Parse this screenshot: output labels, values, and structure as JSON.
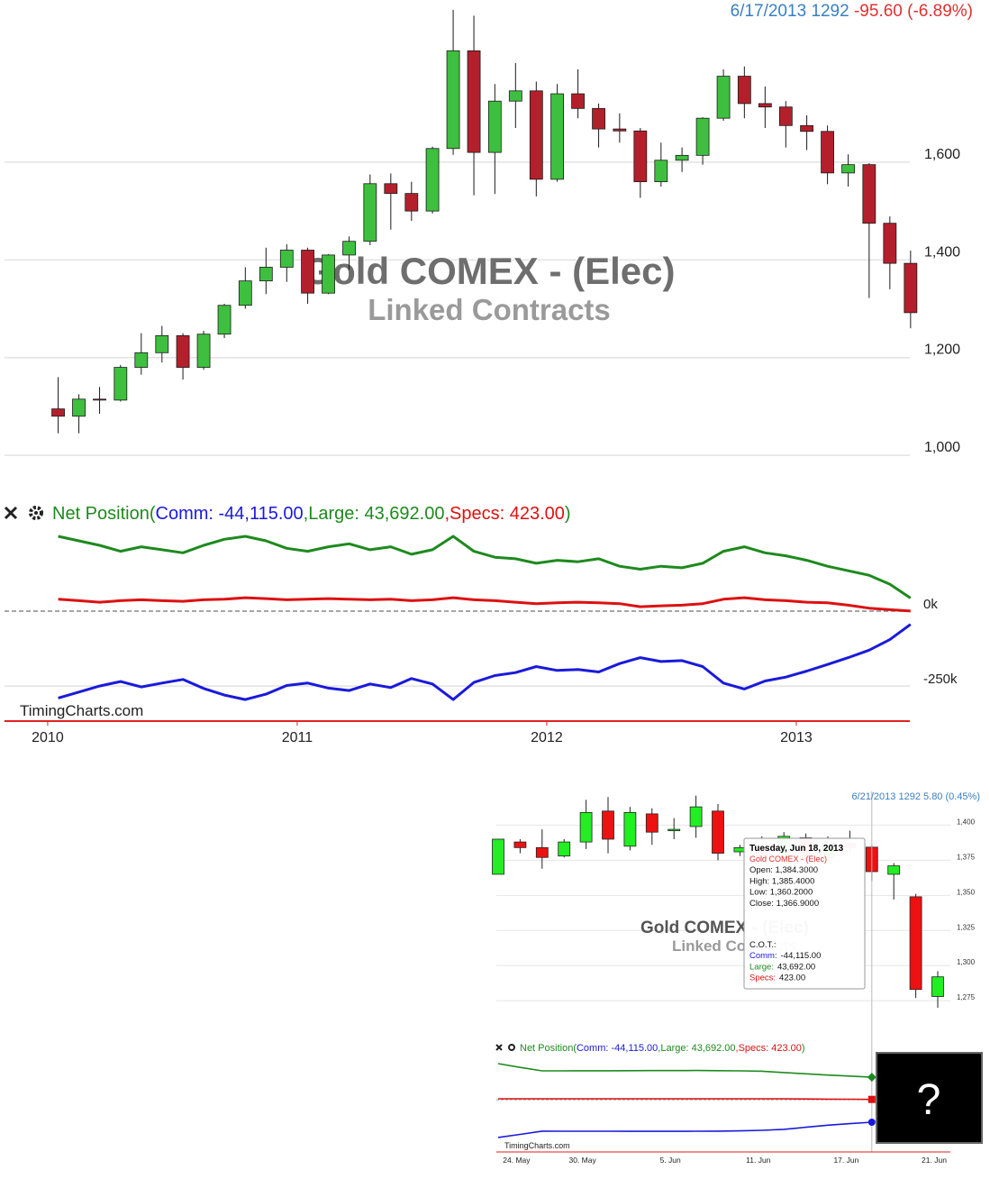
{
  "chart_data": [
    {
      "type": "candlestick",
      "last_date": "6/17/2013",
      "change_label": "-95.60 (-6.89%)",
      "watermark": "Gold COMEX - (Elec)",
      "subtitle": "Linked Contracts",
      "credit": "TimingCharts.com",
      "up_color": "#3fbf3f",
      "down_color": "#b3202c",
      "x": [
        2010.042,
        2010.125,
        2010.208,
        2010.292,
        2010.375,
        2010.458,
        2010.542,
        2010.625,
        2010.708,
        2010.792,
        2010.875,
        2010.958,
        2011.042,
        2011.125,
        2011.208,
        2011.292,
        2011.375,
        2011.458,
        2011.542,
        2011.625,
        2011.708,
        2011.792,
        2011.875,
        2011.958,
        2012.042,
        2012.125,
        2012.208,
        2012.292,
        2012.375,
        2012.458,
        2012.542,
        2012.625,
        2012.708,
        2012.792,
        2012.875,
        2012.958,
        2013.042,
        2013.125,
        2013.208,
        2013.292,
        2013.375,
        2013.458
      ],
      "xlim": [
        2009.827,
        2013.455
      ],
      "xticks": [
        2010,
        2011,
        2012,
        2013
      ],
      "open": [
        1095,
        1080,
        1115,
        1113,
        1180,
        1210,
        1245,
        1180,
        1248,
        1307,
        1357,
        1385,
        1420,
        1332,
        1410,
        1438,
        1556,
        1536,
        1500,
        1628,
        1828,
        1620,
        1725,
        1746,
        1565,
        1740,
        1710,
        1668,
        1664,
        1560,
        1604,
        1614,
        1690,
        1776,
        1720,
        1713,
        1675,
        1663,
        1578,
        1595,
        1475,
        1393
      ],
      "high": [
        1160,
        1125,
        1140,
        1185,
        1250,
        1265,
        1250,
        1255,
        1310,
        1385,
        1425,
        1432,
        1425,
        1412,
        1448,
        1575,
        1577,
        1560,
        1632,
        1912,
        1900,
        1760,
        1803,
        1765,
        1760,
        1790,
        1720,
        1700,
        1670,
        1640,
        1630,
        1692,
        1790,
        1796,
        1755,
        1725,
        1696,
        1675,
        1616,
        1598,
        1489,
        1419
      ],
      "low": [
        1045,
        1045,
        1085,
        1110,
        1165,
        1190,
        1155,
        1175,
        1240,
        1300,
        1330,
        1355,
        1310,
        1330,
        1380,
        1430,
        1462,
        1480,
        1495,
        1615,
        1532,
        1535,
        1670,
        1530,
        1560,
        1690,
        1630,
        1640,
        1527,
        1550,
        1580,
        1595,
        1685,
        1690,
        1670,
        1630,
        1625,
        1555,
        1550,
        1322,
        1340,
        1260
      ],
      "close": [
        1080,
        1115,
        1113,
        1180,
        1210,
        1245,
        1180,
        1248,
        1307,
        1357,
        1385,
        1420,
        1332,
        1410,
        1438,
        1556,
        1536,
        1500,
        1628,
        1828,
        1620,
        1725,
        1746,
        1565,
        1740,
        1710,
        1668,
        1664,
        1560,
        1604,
        1614,
        1690,
        1776,
        1720,
        1713,
        1675,
        1663,
        1578,
        1595,
        1475,
        1393,
        1292
      ],
      "ylim": [
        991,
        1932
      ],
      "yticks": [
        {
          "value": 1000,
          "label": "1,000"
        },
        {
          "value": 1200,
          "label": "1,200"
        },
        {
          "value": 1400,
          "label": "1,400"
        },
        {
          "value": 1600,
          "label": "1,600"
        }
      ],
      "indicator": {
        "title_prefix": "Net Position(",
        "title_suffix": ")",
        "ylim": [
          -367000,
          265000
        ],
        "yticks": [
          {
            "value": 0,
            "label": "0k"
          },
          {
            "value": -250000,
            "label": "-250k"
          }
        ],
        "series": [
          {
            "legend": "Comm: -44,115.00",
            "color": "#1a1adb",
            "values": [
              -290000,
              -270000,
              -250000,
              -235000,
              -253000,
              -240000,
              -228000,
              -258000,
              -280000,
              -295000,
              -277000,
              -248000,
              -240000,
              -257000,
              -265000,
              -243000,
              -255000,
              -225000,
              -243000,
              -295000,
              -238000,
              -215000,
              -205000,
              -185000,
              -198000,
              -195000,
              -203000,
              -175000,
              -155000,
              -168000,
              -165000,
              -185000,
              -240000,
              -260000,
              -233000,
              -220000,
              -200000,
              -178000,
              -155000,
              -130000,
              -95000,
              -44115
            ]
          },
          {
            "legend": ",Large: 43,692.00",
            "color": "#1e8a1e",
            "values": [
              250000,
              235000,
              220000,
              200000,
              215000,
              205000,
              195000,
              220000,
              240000,
              250000,
              235000,
              210000,
              200000,
              215000,
              225000,
              205000,
              215000,
              190000,
              205000,
              250000,
              200000,
              180000,
              175000,
              160000,
              170000,
              165000,
              175000,
              150000,
              140000,
              150000,
              145000,
              160000,
              200000,
              215000,
              195000,
              185000,
              170000,
              150000,
              135000,
              120000,
              90000,
              43692
            ]
          },
          {
            "legend": ",Specs: 423.00",
            "color": "#dd1111",
            "values": [
              40000,
              35000,
              30000,
              35000,
              38000,
              35000,
              33000,
              38000,
              40000,
              45000,
              42000,
              38000,
              40000,
              42000,
              40000,
              38000,
              40000,
              35000,
              38000,
              45000,
              38000,
              35000,
              30000,
              25000,
              28000,
              30000,
              28000,
              25000,
              15000,
              18000,
              20000,
              25000,
              40000,
              45000,
              38000,
              35000,
              30000,
              28000,
              20000,
              10000,
              5000,
              423
            ]
          }
        ]
      }
    },
    {
      "type": "candlestick",
      "last_date": "6/21/2013",
      "change_label": "5.80 (0.45%)",
      "watermark": "Gold COMEX - (Elec)",
      "subtitle": "Linked Contracts",
      "credit": "TimingCharts.com",
      "up_color": "#22ee22",
      "down_color": "#ee1111",
      "categories": [
        null,
        "24. May",
        null,
        null,
        "30. May",
        null,
        null,
        null,
        "5. Jun",
        null,
        null,
        null,
        "11. Jun",
        null,
        null,
        null,
        "17. Jun",
        null,
        null,
        null,
        "21. Jun"
      ],
      "open": [
        1365,
        1388,
        1384,
        1378,
        1388,
        1410,
        1385,
        1408,
        1396,
        1399,
        1410,
        1381,
        1385,
        1377,
        1391,
        1377,
        1387,
        1384.3,
        1365,
        1349,
        1278
      ],
      "high": [
        1390,
        1390,
        1397,
        1390,
        1418,
        1420,
        1413,
        1412,
        1405,
        1421,
        1415,
        1386,
        1392,
        1395,
        1394,
        1392,
        1396,
        1385.4,
        1373,
        1351,
        1296
      ],
      "low": [
        1365,
        1380,
        1369,
        1377,
        1383,
        1380,
        1382,
        1386,
        1390,
        1391,
        1375,
        1378,
        1372,
        1373,
        1371,
        1375,
        1380,
        1360.2,
        1347,
        1277,
        1270
      ],
      "close": [
        1390,
        1384,
        1377,
        1388,
        1409,
        1390,
        1409,
        1395,
        1397,
        1413,
        1380,
        1384,
        1378,
        1392,
        1375,
        1387,
        1384,
        1366.9,
        1371,
        1283,
        1292
      ],
      "ylim": [
        1270,
        1424
      ],
      "yticks": [
        {
          "value": 1275,
          "label": "1,275"
        },
        {
          "value": 1300,
          "label": "1,300"
        },
        {
          "value": 1325,
          "label": "1,325"
        },
        {
          "value": 1350,
          "label": "1,350"
        },
        {
          "value": 1375,
          "label": "1,375"
        },
        {
          "value": 1400,
          "label": "1,400"
        }
      ],
      "hover_index": 17,
      "tooltip": {
        "title": "Tuesday, Jun 18, 2013",
        "series": "Gold COMEX - (Elec)",
        "lines": [
          "Open: 1,384.3000",
          "High: 1,385.4000",
          "Low: 1,360.2000",
          "Close: 1,366.9000"
        ],
        "cot_title": "C.O.T.:",
        "cot": [
          {
            "label": "Comm:",
            "value": "-44,115.00",
            "color": "#1a1adb"
          },
          {
            "label": "Large:",
            "value": "43,692.00",
            "color": "#1e8a1e"
          },
          {
            "label": "Specs:",
            "value": "423.00",
            "color": "#dd1111"
          }
        ]
      },
      "indicator": {
        "title_prefix": "Net Position(",
        "title_suffix": ")",
        "ylim": [
          -97000,
          88000
        ],
        "series": [
          {
            "legend": "Comm: -44,115.00",
            "color": "#1a1adb",
            "marker": "circle",
            "values": [
              -74000,
              -68000,
              -61600,
              -61700,
              -61800,
              -61800,
              -61900,
              -61900,
              -61900,
              -61800,
              -61500,
              -61000,
              -60000,
              -58000,
              -54000,
              -50000,
              -47000,
              -44115,
              null,
              null,
              null
            ]
          },
          {
            "legend": ",Large: 43,692.00",
            "color": "#1e8a1e",
            "marker": "diamond",
            "values": [
              70400,
              63000,
              56300,
              56300,
              56400,
              56500,
              56600,
              56800,
              56900,
              57000,
              56700,
              56200,
              55600,
              53000,
              50500,
              48000,
              46000,
              43692,
              null,
              null,
              null
            ]
          },
          {
            "legend": ",Specs: 423.00",
            "color": "#dd1111",
            "marker": "square",
            "values": [
              1700,
              1700,
              1700,
              1700,
              1700,
              1700,
              1700,
              1700,
              1700,
              1700,
              1700,
              1700,
              1700,
              1600,
              1300,
              1000,
              700,
              423,
              null,
              null,
              null
            ]
          }
        ]
      }
    }
  ],
  "overlay_label": "?"
}
